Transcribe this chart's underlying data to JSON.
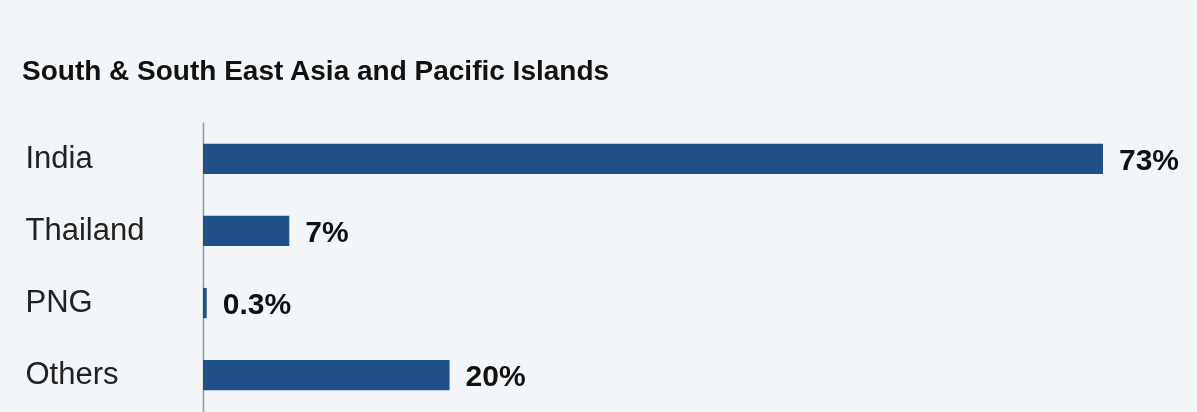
{
  "chart_data": {
    "type": "bar",
    "orientation": "horizontal",
    "title": "South & South East Asia and Pacific Islands",
    "categories": [
      "India",
      "Thailand",
      "PNG",
      "Others"
    ],
    "values": [
      73,
      7,
      0.3,
      20
    ],
    "value_labels": [
      "73%",
      "7%",
      "0.3%",
      "20%"
    ],
    "color": "#1f5186",
    "grid": false
  }
}
